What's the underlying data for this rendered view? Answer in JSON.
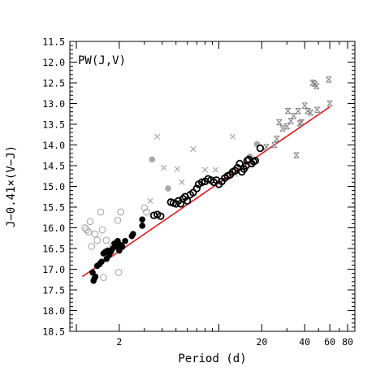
{
  "chart_data": {
    "type": "scatter",
    "annotation": "PW(J,V)",
    "xlabel": "Period (d)",
    "ylabel": "J−0.41×(V−J)",
    "x_scale": "log",
    "xlim": [
      0.9,
      90
    ],
    "ylim": [
      18.5,
      11.5
    ],
    "y_inverted": true,
    "grid": false,
    "x_major_ticks": [
      2,
      20,
      40,
      60,
      80
    ],
    "x_tick_labels": [
      "2",
      "20",
      "40",
      "60",
      "80"
    ],
    "y_ticks": [
      11.5,
      12.0,
      12.5,
      13.0,
      13.5,
      14.0,
      14.5,
      15.0,
      15.5,
      16.0,
      16.5,
      17.0,
      17.5,
      18.0,
      18.5
    ],
    "y_tick_labels": [
      "11.5",
      "12.0",
      "12.5",
      "13.0",
      "13.5",
      "14.0",
      "14.5",
      "15.0",
      "15.5",
      "16.0",
      "16.5",
      "17.0",
      "17.5",
      "18.0",
      "18.5"
    ],
    "colors": {
      "fit_line": "#e8161b",
      "filled": "#000000",
      "outlier_gray": "#a8a8a8",
      "star_gray": "#808080"
    },
    "fit_line": {
      "x": [
        1.1,
        60
      ],
      "y": [
        17.18,
        13.08
      ]
    },
    "series": [
      {
        "marker": "filled-circle",
        "color": "#000000",
        "points": [
          [
            1.3,
            17.08
          ],
          [
            1.32,
            17.28
          ],
          [
            1.34,
            17.22
          ],
          [
            1.36,
            17.18
          ],
          [
            1.4,
            16.92
          ],
          [
            1.45,
            16.88
          ],
          [
            1.5,
            16.82
          ],
          [
            1.55,
            16.62
          ],
          [
            1.6,
            16.58
          ],
          [
            1.63,
            16.75
          ],
          [
            1.66,
            16.55
          ],
          [
            1.7,
            16.65
          ],
          [
            1.75,
            16.58
          ],
          [
            1.8,
            16.5
          ],
          [
            1.85,
            16.38
          ],
          [
            1.9,
            16.45
          ],
          [
            1.95,
            16.32
          ],
          [
            2.0,
            16.55
          ],
          [
            2.05,
            16.42
          ],
          [
            2.1,
            16.46
          ],
          [
            2.2,
            16.32
          ],
          [
            2.45,
            16.2
          ],
          [
            2.5,
            16.15
          ],
          [
            2.9,
            15.95
          ],
          [
            2.9,
            15.8
          ]
        ]
      },
      {
        "marker": "open-circle",
        "color": "#000000",
        "points": [
          [
            3.5,
            15.7
          ],
          [
            3.7,
            15.68
          ],
          [
            3.9,
            15.72
          ],
          [
            4.6,
            15.38
          ],
          [
            4.8,
            15.4
          ],
          [
            5.0,
            15.42
          ],
          [
            5.2,
            15.35
          ],
          [
            5.4,
            15.42
          ],
          [
            5.6,
            15.3
          ],
          [
            5.8,
            15.25
          ],
          [
            6.0,
            15.35
          ],
          [
            6.3,
            15.2
          ],
          [
            6.6,
            15.15
          ],
          [
            7.0,
            15.05
          ],
          [
            7.2,
            14.95
          ],
          [
            7.6,
            14.9
          ],
          [
            8.0,
            14.88
          ],
          [
            8.4,
            14.82
          ],
          [
            8.8,
            14.85
          ],
          [
            9.2,
            14.9
          ],
          [
            9.6,
            14.85
          ],
          [
            10.0,
            14.95
          ],
          [
            10.5,
            14.88
          ],
          [
            11.0,
            14.8
          ],
          [
            11.5,
            14.75
          ],
          [
            12.0,
            14.72
          ],
          [
            12.5,
            14.65
          ],
          [
            13.0,
            14.62
          ],
          [
            13.5,
            14.55
          ],
          [
            14.0,
            14.45
          ],
          [
            14.5,
            14.65
          ],
          [
            15.0,
            14.58
          ],
          [
            15.5,
            14.5
          ],
          [
            15.8,
            14.38
          ],
          [
            16.2,
            14.35
          ],
          [
            17.0,
            14.45
          ],
          [
            17.5,
            14.4
          ],
          [
            18.0,
            14.38
          ],
          [
            19.5,
            14.08
          ]
        ]
      },
      {
        "marker": "gray-open-circle",
        "color": "#a8a8a8",
        "points": [
          [
            1.15,
            16.0
          ],
          [
            1.18,
            16.05
          ],
          [
            1.22,
            16.1
          ],
          [
            1.25,
            15.85
          ],
          [
            1.28,
            16.45
          ],
          [
            1.35,
            16.15
          ],
          [
            1.4,
            16.3
          ],
          [
            1.48,
            15.62
          ],
          [
            1.52,
            16.05
          ],
          [
            1.55,
            17.2
          ],
          [
            1.62,
            16.3
          ],
          [
            1.8,
            16.42
          ],
          [
            1.95,
            15.82
          ],
          [
            1.98,
            17.08
          ],
          [
            2.05,
            15.62
          ],
          [
            3.0,
            15.52
          ],
          [
            3.1,
            15.62
          ]
        ]
      },
      {
        "marker": "gray-filled-circle",
        "color": "#a8a8a8",
        "points": [
          [
            3.4,
            14.35
          ],
          [
            4.4,
            15.05
          ],
          [
            16.5,
            14.28
          ],
          [
            18.5,
            13.98
          ]
        ]
      },
      {
        "marker": "gray-cross",
        "color": "#a8a8a8",
        "points": [
          [
            3.3,
            15.35
          ],
          [
            3.7,
            13.8
          ],
          [
            4.1,
            14.55
          ],
          [
            5.1,
            14.58
          ],
          [
            5.5,
            14.9
          ],
          [
            6.6,
            14.1
          ],
          [
            8.0,
            14.6
          ],
          [
            9.5,
            14.6
          ],
          [
            12.5,
            13.8
          ],
          [
            13.0,
            14.7
          ],
          [
            15.0,
            14.55
          ]
        ]
      },
      {
        "marker": "gray-star",
        "color": "#808080",
        "points": [
          [
            21.5,
            14.05
          ],
          [
            24.5,
            14.0
          ],
          [
            25.5,
            13.85
          ],
          [
            26.5,
            13.45
          ],
          [
            28.0,
            13.6
          ],
          [
            30.0,
            13.55
          ],
          [
            30.5,
            13.18
          ],
          [
            32.0,
            13.42
          ],
          [
            33.5,
            13.3
          ],
          [
            35.0,
            14.25
          ],
          [
            36.0,
            13.18
          ],
          [
            37.0,
            13.48
          ],
          [
            38.0,
            13.45
          ],
          [
            40.0,
            13.05
          ],
          [
            42.0,
            13.18
          ],
          [
            44.0,
            13.22
          ],
          [
            45.5,
            12.5
          ],
          [
            47.0,
            12.52
          ],
          [
            48.5,
            12.58
          ],
          [
            49.0,
            13.15
          ],
          [
            59.0,
            12.42
          ],
          [
            60.0,
            13.0
          ]
        ]
      }
    ]
  }
}
